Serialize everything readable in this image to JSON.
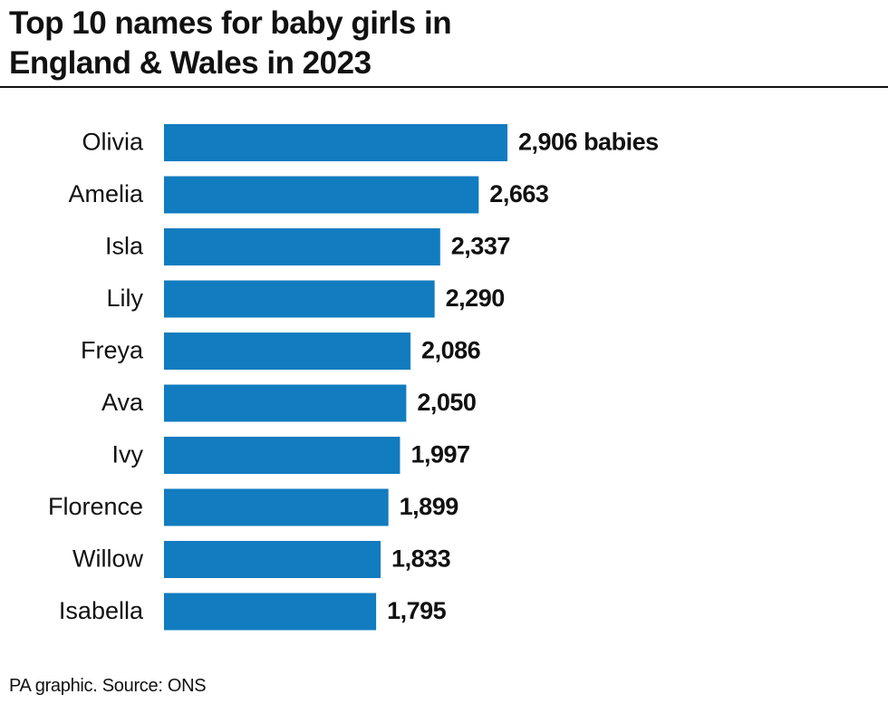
{
  "chart_data": {
    "type": "bar",
    "orientation": "horizontal",
    "title": "Top 10 names for baby girls in England & Wales in 2023",
    "source": "PA graphic. Source: ONS",
    "categories": [
      "Olivia",
      "Amelia",
      "Isla",
      "Lily",
      "Freya",
      "Ava",
      "Ivy",
      "Florence",
      "Willow",
      "Isabella"
    ],
    "values": [
      2906,
      2663,
      2337,
      2290,
      2086,
      2050,
      1997,
      1899,
      1833,
      1795
    ],
    "value_labels": [
      "2,906 babies",
      "2,663",
      "2,337",
      "2,290",
      "2,086",
      "2,050",
      "1,997",
      "1,899",
      "1,833",
      "1,795"
    ],
    "color": "#117cbf"
  }
}
